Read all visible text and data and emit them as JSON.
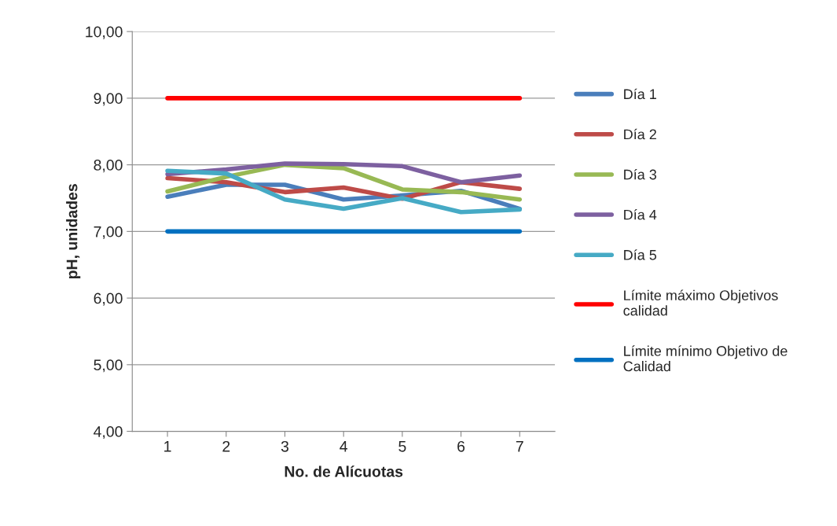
{
  "chart_data": {
    "type": "line",
    "xlabel": "No. de Alícuotas",
    "ylabel": "pH, unidades",
    "categories": [
      "1",
      "2",
      "3",
      "4",
      "5",
      "6",
      "7"
    ],
    "series": [
      {
        "name": "Día 1",
        "color": "#4a7ebb",
        "values": [
          7.52,
          7.7,
          7.7,
          7.48,
          7.54,
          7.61,
          7.34
        ]
      },
      {
        "name": "Día 2",
        "color": "#be4b48",
        "values": [
          7.8,
          7.74,
          7.59,
          7.66,
          7.49,
          7.74,
          7.64
        ]
      },
      {
        "name": "Día 3",
        "color": "#98b954",
        "values": [
          7.6,
          7.82,
          8.0,
          7.95,
          7.63,
          7.59,
          7.48
        ]
      },
      {
        "name": "Día 4",
        "color": "#7d60a0",
        "values": [
          7.86,
          7.93,
          8.02,
          8.01,
          7.98,
          7.74,
          7.84
        ]
      },
      {
        "name": "Día 5",
        "color": "#46aac5",
        "values": [
          7.91,
          7.87,
          7.48,
          7.34,
          7.5,
          7.29,
          7.33
        ]
      },
      {
        "name": "Límite máximo Objetivos calidad",
        "color": "#ff0000",
        "values": [
          9,
          9,
          9,
          9,
          9,
          9,
          9
        ]
      },
      {
        "name": "Límite mínimo Objetivo de Calidad",
        "color": "#0070c0",
        "values": [
          7,
          7,
          7,
          7,
          7,
          7,
          7
        ]
      }
    ],
    "ylim": [
      4,
      10
    ],
    "yticks": [
      {
        "value": 4,
        "label": "4,00"
      },
      {
        "value": 5,
        "label": "5,00"
      },
      {
        "value": 6,
        "label": "6,00"
      },
      {
        "value": 7,
        "label": "7,00"
      },
      {
        "value": 8,
        "label": "8,00"
      },
      {
        "value": 9,
        "label": "9,00"
      },
      {
        "value": 10,
        "label": "10,00"
      }
    ],
    "grid": "y",
    "legend": "right",
    "marker": "none",
    "line_style": "solid"
  }
}
